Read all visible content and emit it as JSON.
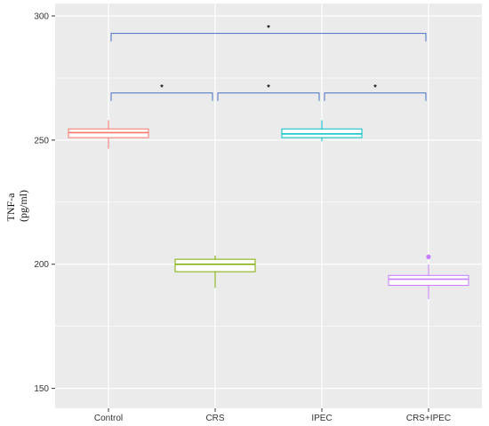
{
  "chart_data": {
    "type": "box",
    "title": "",
    "xlabel": "",
    "ylabel": "TNF-a",
    "ylabel_unit": "(pg/ml)",
    "categories": [
      "Control",
      "CRS",
      "IPEC",
      "CRS+IPEC"
    ],
    "ylim": [
      142,
      305
    ],
    "yticks": [
      150,
      200,
      250,
      300
    ],
    "grid": true,
    "legend": "none",
    "boxes": [
      {
        "category": "Control",
        "min": 246.5,
        "q1": 251.0,
        "median": 253.0,
        "q3": 254.5,
        "max": 258.0,
        "outliers": [],
        "color": "#f8766d"
      },
      {
        "category": "CRS",
        "min": 190.5,
        "q1": 197.0,
        "median": 200.0,
        "q3": 202.0,
        "max": 203.5,
        "outliers": [],
        "color": "#7cae00"
      },
      {
        "category": "IPEC",
        "min": 249.5,
        "q1": 251.0,
        "median": 252.5,
        "q3": 254.5,
        "max": 258.0,
        "outliers": [],
        "color": "#00bfc4"
      },
      {
        "category": "CRS+IPEC",
        "min": 186.0,
        "q1": 191.5,
        "median": 194.0,
        "q3": 195.5,
        "max": 200.0,
        "outliers": [
          203.0
        ],
        "color": "#c77cff"
      }
    ],
    "brackets": [
      {
        "from": "Control",
        "to": "CRS",
        "y": 269,
        "label": "*"
      },
      {
        "from": "CRS",
        "to": "IPEC",
        "y": 269,
        "label": "*"
      },
      {
        "from": "IPEC",
        "to": "CRS+IPEC",
        "y": 269,
        "label": "*"
      },
      {
        "from": "Control",
        "to": "CRS+IPEC",
        "y": 293,
        "label": "*"
      }
    ],
    "bracket_color": "#4a72c4",
    "panel_background": "#ebebeb",
    "grid_color": "#ffffff"
  }
}
